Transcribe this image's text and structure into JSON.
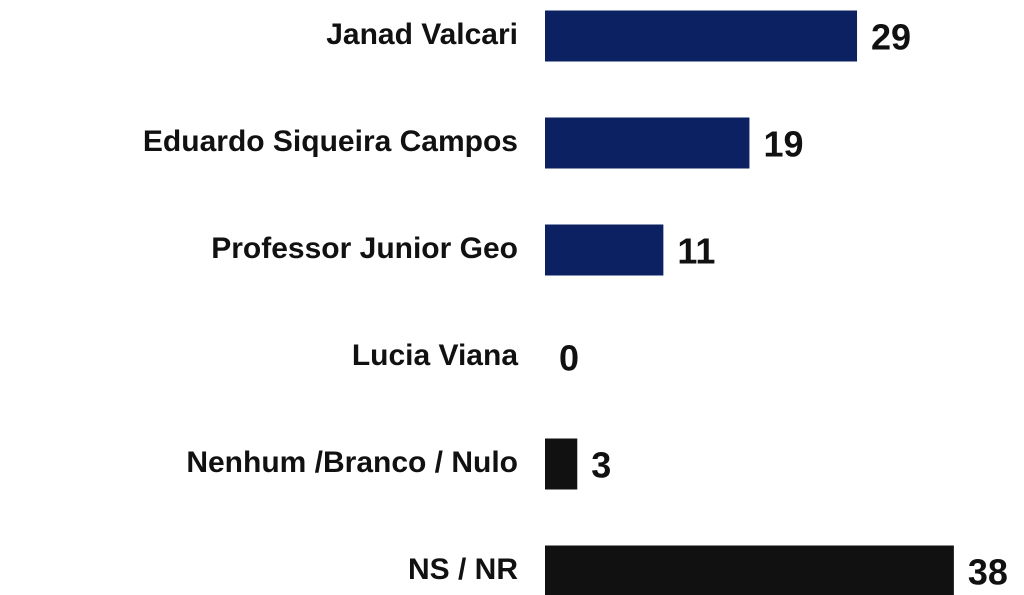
{
  "chart_data": {
    "type": "barh",
    "categories": [
      "Janad Valcari",
      "Eduardo Siqueira Campos",
      "Professor Junior Geo",
      "Lucia Viana",
      "Nenhum /Branco / Nulo",
      "NS / NR"
    ],
    "values": [
      29,
      19,
      11,
      0,
      3,
      38
    ],
    "colors": [
      "#0b2161",
      "#0b2161",
      "#0b2161",
      "#0b2161",
      "#111111",
      "#111111"
    ]
  }
}
